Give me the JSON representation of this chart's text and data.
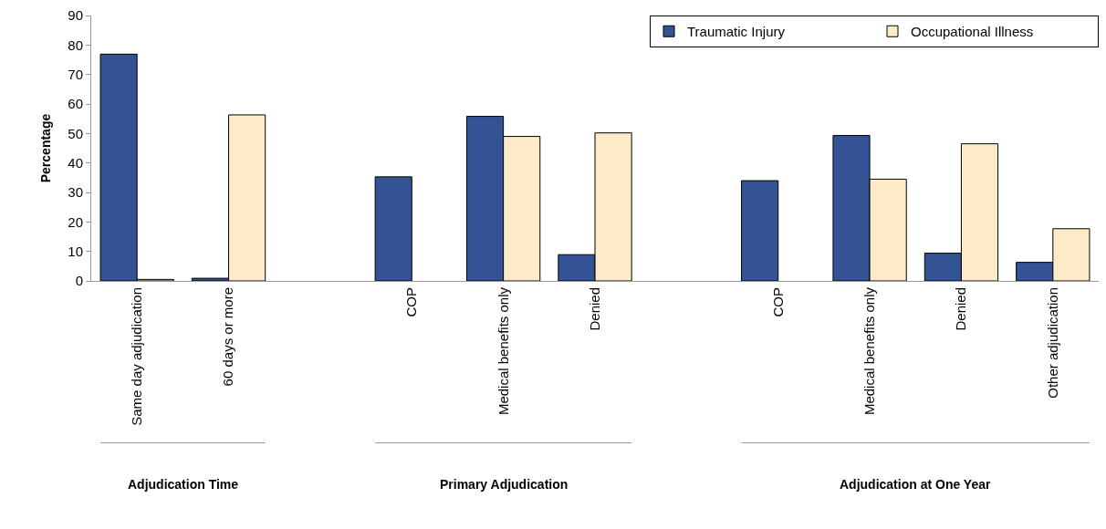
{
  "chart_data": {
    "type": "bar",
    "ylabel": "Percentage",
    "categories": [
      "Same day adjudication",
      "60 days or more",
      null,
      "COP",
      "Medical benefits only",
      "Denied",
      null,
      "COP",
      "Medical benefits only",
      "Denied",
      "Other adjudication"
    ],
    "series": [
      {
        "name": "Traumatic Injury",
        "color": "#345394",
        "values": [
          76.9,
          0.9,
          null,
          35.3,
          55.8,
          8.9,
          null,
          34.0,
          49.3,
          9.4,
          6.3
        ]
      },
      {
        "name": "Occupational Illness",
        "color": "#fdebc8",
        "values": [
          0.5,
          56.3,
          null,
          null,
          49.0,
          50.2,
          null,
          null,
          34.5,
          46.5,
          17.7
        ]
      }
    ],
    "annotations": [
      "Adjudication Time",
      "Primary Adjudication",
      "Adjudication at One Year"
    ],
    "ylim": [
      0,
      90
    ],
    "yticks": [
      0,
      10,
      20,
      30,
      40,
      50,
      60,
      70,
      80,
      90
    ],
    "legend": "top right"
  }
}
